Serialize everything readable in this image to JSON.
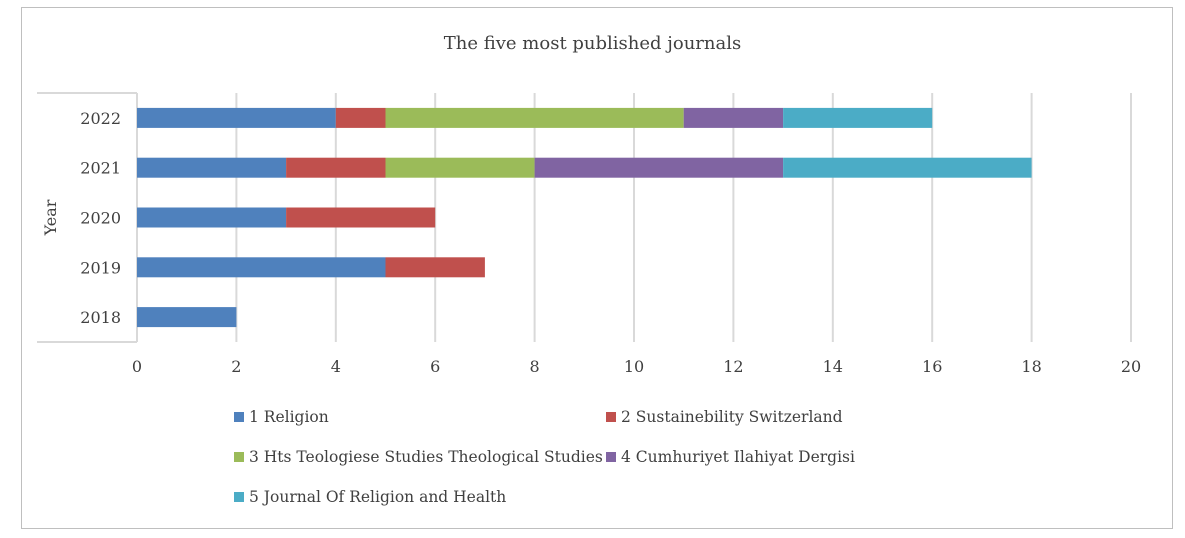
{
  "chart_data": {
    "type": "bar",
    "orientation": "horizontal",
    "stacked": true,
    "title": "The five most published journals",
    "ylabel": "Year",
    "xlabel": "",
    "categories": [
      "2018",
      "2019",
      "2020",
      "2021",
      "2022"
    ],
    "xlim": [
      0,
      20
    ],
    "xticks": [
      "0",
      "2",
      "4",
      "6",
      "8",
      "10",
      "12",
      "14",
      "16",
      "18",
      "20"
    ],
    "grid": true,
    "legend_position": "bottom",
    "series": [
      {
        "name": "1 Religion",
        "color": "#4f81bd",
        "values": [
          2,
          5,
          3,
          3,
          4
        ]
      },
      {
        "name": "2 Sustainebility Switzerland",
        "color": "#c0504d",
        "values": [
          0,
          2,
          3,
          2,
          1
        ]
      },
      {
        "name": "3 Hts Teologiese Studies Theological Studies",
        "color": "#9bbb59",
        "values": [
          0,
          0,
          0,
          3,
          6
        ]
      },
      {
        "name": "4 Cumhuriyet Ilahiyat Dergisi",
        "color": "#8064a2",
        "values": [
          0,
          0,
          0,
          5,
          2
        ]
      },
      {
        "name": "5 Journal Of Religion and Health",
        "color": "#4bacc6",
        "values": [
          0,
          0,
          0,
          5,
          3
        ]
      }
    ]
  }
}
